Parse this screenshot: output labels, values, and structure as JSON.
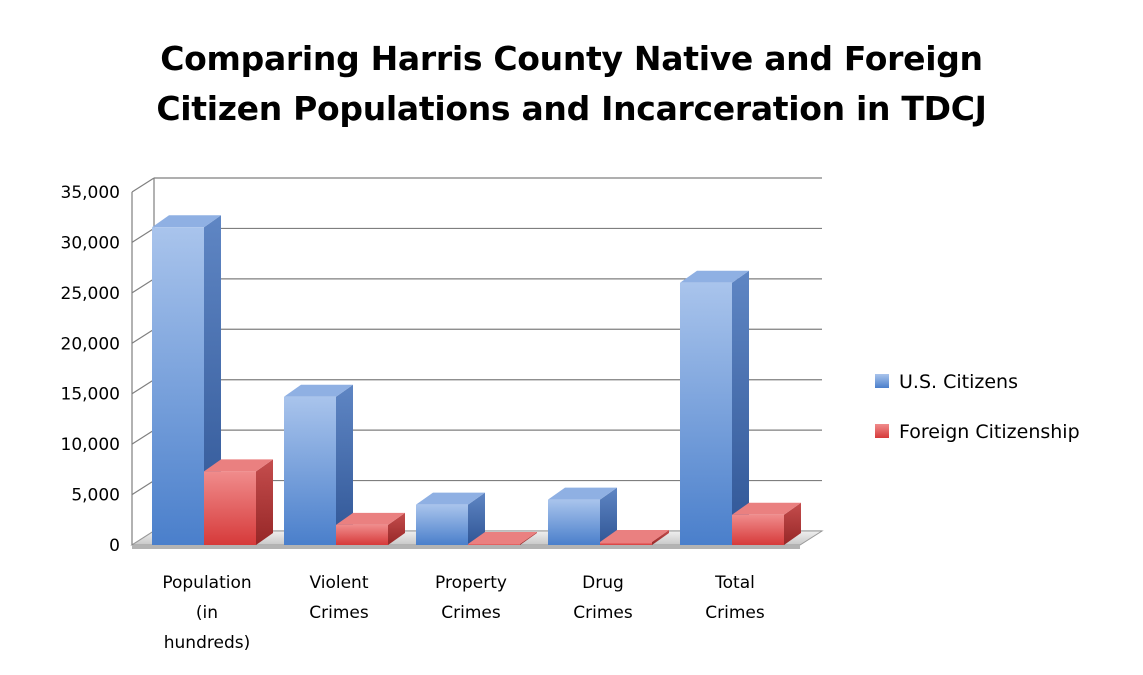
{
  "chart_data": {
    "type": "bar",
    "title": "Comparing Harris County Native and Foreign Citizen Populations and Incarceration in TDCJ",
    "title_lines": [
      "Comparing Harris County Native and Foreign",
      "Citizen Populations and Incarceration in TDCJ"
    ],
    "categories": [
      [
        "Population",
        "(in",
        "hundreds)"
      ],
      [
        "Violent",
        "Crimes"
      ],
      [
        "Property",
        "Crimes"
      ],
      [
        "Drug",
        "Crimes"
      ],
      [
        "Total",
        "Crimes"
      ]
    ],
    "series": [
      {
        "name": "U.S. Citizens",
        "color": "#6a96d4",
        "values": [
          31500,
          14700,
          4000,
          4500,
          26000
        ]
      },
      {
        "name": "Foreign Citizenship",
        "color": "#e05a5a",
        "values": [
          7300,
          2000,
          100,
          300,
          3000
        ]
      }
    ],
    "ylim": [
      0,
      35000
    ],
    "yticks": [
      "0",
      "5,000",
      "10,000",
      "15,000",
      "20,000",
      "25,000",
      "30,000",
      "35,000"
    ],
    "grid": true,
    "three_d": true,
    "legend_position": "right"
  }
}
